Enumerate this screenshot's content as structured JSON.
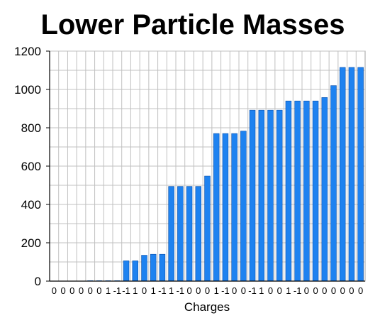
{
  "chart_data": {
    "type": "bar",
    "title": "Lower Particle Masses",
    "xlabel": "Charges",
    "ylabel": "",
    "ylim": [
      0,
      1200
    ],
    "yticks": [
      "0",
      "200",
      "400",
      "600",
      "800",
      "1000",
      "1200"
    ],
    "grid": true,
    "legend": "none",
    "bar_color": "#1e82f0",
    "categories": [
      "0",
      "0",
      "0",
      "0",
      "0",
      "0",
      "1",
      "-1",
      "-1",
      "1",
      "0",
      "1",
      "-1",
      "1",
      "-1",
      "0",
      "0",
      "0",
      "1",
      "-1",
      "0",
      "0",
      "-1",
      "1",
      "0",
      "0",
      "1",
      "-1",
      "0",
      "0",
      "0",
      "0",
      "0",
      "0",
      "0"
    ],
    "values": [
      0,
      0,
      0,
      0,
      0.5,
      0.5,
      0.5,
      0.5,
      106,
      106,
      135,
      140,
      140,
      494,
      494,
      494,
      494,
      548,
      770,
      770,
      770,
      783,
      892,
      892,
      892,
      892,
      940,
      940,
      940,
      940,
      958,
      1020,
      1115,
      1115,
      1115
    ]
  }
}
